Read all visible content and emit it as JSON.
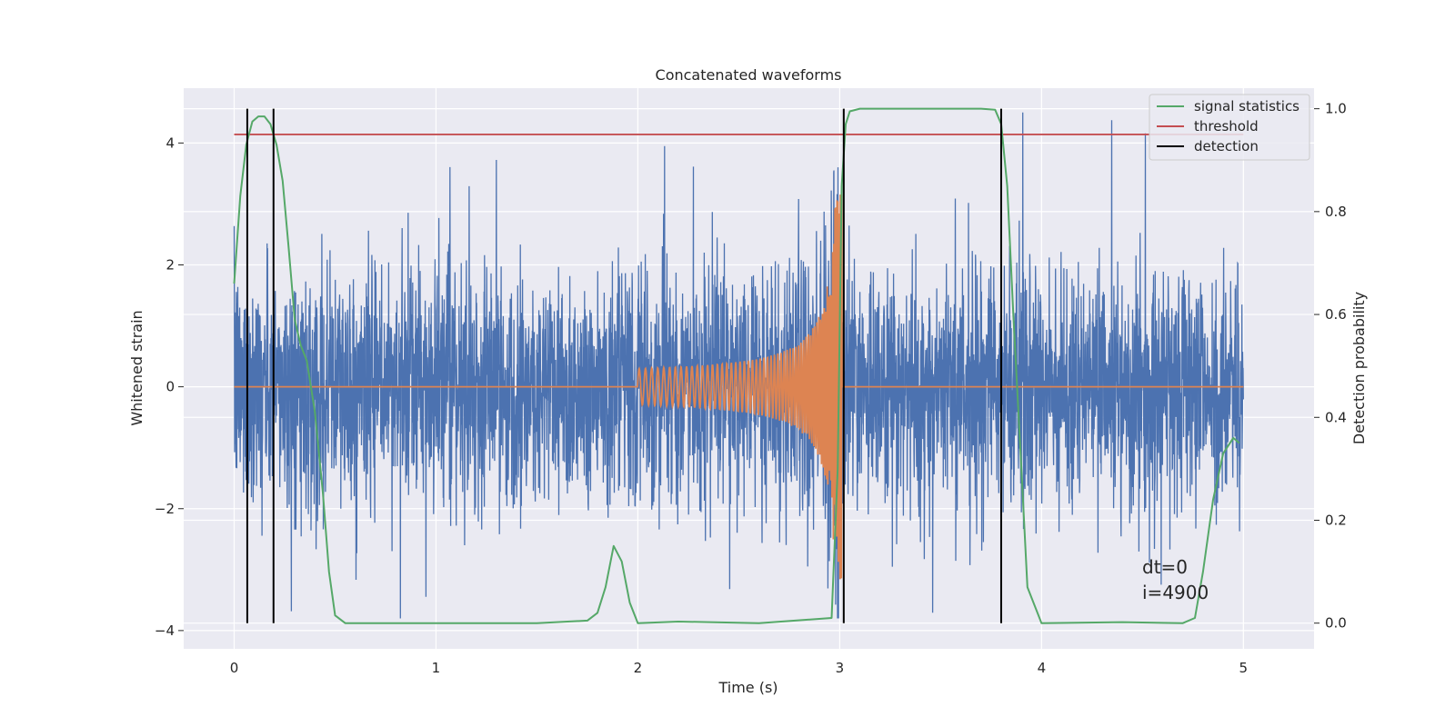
{
  "chart_data": {
    "type": "line",
    "title": "Concatenated waveforms",
    "xlabel": "Time (s)",
    "ylabel": "Whitened strain",
    "ylabel_right": "Detection probability",
    "xlim": [
      -0.25,
      5.35
    ],
    "ylim": [
      -4.3,
      4.9
    ],
    "ylim_right": [
      -0.05,
      1.04
    ],
    "x_ticks": [
      0,
      1,
      2,
      3,
      4,
      5
    ],
    "x_tick_labels": [
      "0",
      "1",
      "2",
      "3",
      "4",
      "5"
    ],
    "y_ticks": [
      -4,
      -2,
      0,
      2,
      4
    ],
    "y_tick_labels": [
      "−4",
      "−2",
      "0",
      "2",
      "4"
    ],
    "y_right_ticks": [
      0.0,
      0.2,
      0.4,
      0.6,
      0.8,
      1.0
    ],
    "y_right_tick_labels": [
      "0.0",
      "0.2",
      "0.4",
      "0.6",
      "0.8",
      "1.0"
    ],
    "grid": true,
    "legend_position": "top-right",
    "colors": {
      "strain": "#4c72b0",
      "template": "#dd8452",
      "signal_statistics": "#55a868",
      "threshold": "#c44e52",
      "detection": "#000000",
      "background": "#eaeaf2",
      "grid": "#ffffff"
    },
    "series": [
      {
        "name": "signal statistics",
        "axis": "right",
        "x": [
          0.0,
          0.03,
          0.06,
          0.09,
          0.12,
          0.15,
          0.18,
          0.21,
          0.24,
          0.27,
          0.3,
          0.33,
          0.36,
          0.4,
          0.44,
          0.47,
          0.5,
          0.55,
          1.0,
          1.5,
          1.75,
          1.8,
          1.84,
          1.88,
          1.92,
          1.96,
          2.0,
          2.2,
          2.6,
          2.96,
          2.99,
          3.01,
          3.03,
          3.05,
          3.1,
          3.7,
          3.77,
          3.8,
          3.83,
          3.86,
          3.9,
          3.93,
          4.0,
          4.4,
          4.7,
          4.76,
          4.8,
          4.85,
          4.9,
          4.95,
          4.98
        ],
        "y": [
          0.66,
          0.83,
          0.93,
          0.975,
          0.985,
          0.985,
          0.97,
          0.93,
          0.86,
          0.73,
          0.59,
          0.54,
          0.51,
          0.41,
          0.25,
          0.1,
          0.015,
          0.0,
          0.0,
          0.0,
          0.005,
          0.02,
          0.07,
          0.15,
          0.12,
          0.04,
          0.0,
          0.003,
          0.0,
          0.01,
          0.3,
          0.85,
          0.97,
          0.995,
          1.0,
          1.0,
          0.998,
          0.97,
          0.85,
          0.6,
          0.3,
          0.07,
          0.0,
          0.002,
          0.0,
          0.01,
          0.1,
          0.24,
          0.33,
          0.36,
          0.35
        ]
      },
      {
        "name": "threshold",
        "axis": "right",
        "x": [
          0.0,
          5.0
        ],
        "y": [
          0.95,
          0.95
        ]
      },
      {
        "name": "detection",
        "axis": "right",
        "x": [
          0.065,
          0.195,
          3.02,
          3.8
        ],
        "y_range": [
          0.0,
          1.0
        ]
      }
    ],
    "legend_entries": [
      "signal statistics",
      "threshold",
      "detection"
    ],
    "annotations": [
      "dt=0",
      "i=4900"
    ]
  }
}
